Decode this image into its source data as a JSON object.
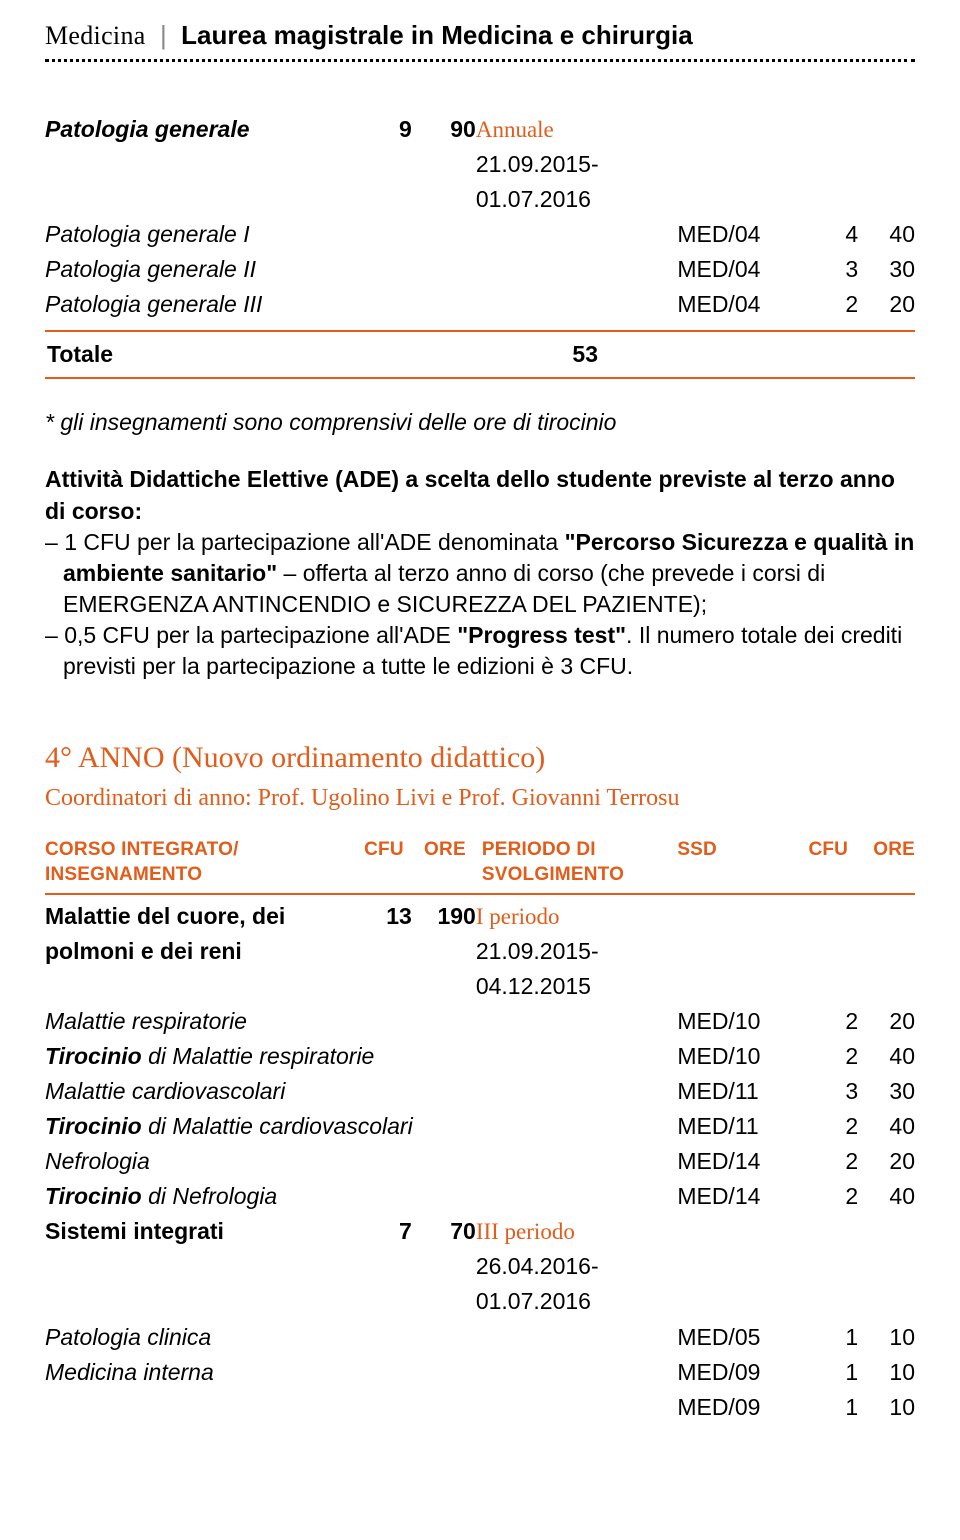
{
  "header": {
    "brand": "Medicina",
    "degree": "Laurea magistrale in Medicina e chirurgia",
    "brand_font": "Georgia serif",
    "brand_fontsize": 26,
    "degree_fontsize": 26,
    "degree_weight": 700,
    "dotted_border_color": "#000000"
  },
  "accent_color": "#e35c19",
  "text_color": "#000000",
  "background_color": "#ffffff",
  "body_fontsize": 23,
  "topTable": {
    "rows": [
      {
        "name": "Patologia generale",
        "name_style": "bold-italic",
        "cfu1": "9",
        "ore1": "90",
        "period": "Annuale",
        "period_orange": true,
        "period2": "21.09.2015-",
        "period3": "01.07.2016"
      },
      {
        "name": "Patologia generale I",
        "name_style": "italic",
        "ssd": "MED/04",
        "cfu2": "4",
        "ore2": "40"
      },
      {
        "name": "Patologia generale II",
        "name_style": "italic",
        "ssd": "MED/04",
        "cfu2": "3",
        "ore2": "30"
      },
      {
        "name": "Patologia generale III",
        "name_style": "italic",
        "ssd": "MED/04",
        "cfu2": "2",
        "ore2": "20"
      }
    ]
  },
  "totale": {
    "label": "Totale",
    "value": "53"
  },
  "note": "* gli insegnamenti sono comprensivi delle ore di tirocinio",
  "ade": {
    "title": "Attività Didattiche Elettive (ADE) a scelta dello studente previste al terzo anno di corso:",
    "item1_pre": "1 CFU per la partecipazione all'ADE denominata ",
    "item1_bold": "\"Percorso Sicurezza e qualità in ambiente sanitario\"",
    "item1_post": " – offerta al terzo anno di corso (che prevede i corsi di EMERGENZA ANTINCENDIO e SICUREZZA DEL PAZIENTE);",
    "item2_pre": "0,5 CFU per la partecipazione all'ADE ",
    "item2_bold": "\"Progress test\"",
    "item2_post": ". Il numero totale dei crediti previsti per la partecipazione a tutte le edizioni è 3 CFU."
  },
  "year": {
    "title": "4° ANNO (Nuovo ordinamento didattico)",
    "subtitle": "Coordinatori di anno: Prof. Ugolino Livi e Prof. Giovanni Terrosu",
    "title_fontsize": 30,
    "subtitle_fontsize": 24,
    "header": {
      "c1a": "CORSO INTEGRATO/",
      "c1b": "INSEGNAMENTO",
      "c2": "CFU",
      "c3": "ORE",
      "c4a": "PERIODO DI",
      "c4b": "SVOLGIMENTO",
      "c5": "SSD",
      "c6": "CFU",
      "c7": "ORE",
      "color": "#e35c19",
      "border_color": "#e35c19",
      "fontsize": 19
    },
    "rows": [
      {
        "name": "Malattie del cuore, dei",
        "name_style": "bold",
        "cfu1": "13",
        "ore1": "190",
        "period": "I periodo",
        "period_orange": true
      },
      {
        "name": "polmoni e dei reni",
        "name_style": "bold",
        "period": "21.09.2015-"
      },
      {
        "period": "04.12.2015"
      },
      {
        "name": "Malattie respiratorie",
        "name_style": "italic",
        "wide": true,
        "ssd": "MED/10",
        "cfu2": "2",
        "ore2": "20"
      },
      {
        "name_pre_bi": "Tirocinio",
        "name_post_i": " di Malattie respiratorie",
        "wide": true,
        "ssd": "MED/10",
        "cfu2": "2",
        "ore2": "40"
      },
      {
        "name": "Malattie cardiovascolari",
        "name_style": "italic",
        "wide": true,
        "ssd": "MED/11",
        "cfu2": "3",
        "ore2": "30"
      },
      {
        "name_pre_bi": "Tirocinio",
        "name_post_i": " di Malattie cardiovascolari",
        "wide": true,
        "ssd": "MED/11",
        "cfu2": "2",
        "ore2": "40"
      },
      {
        "name": "Nefrologia",
        "name_style": "italic",
        "wide": true,
        "ssd": "MED/14",
        "cfu2": "2",
        "ore2": "20"
      },
      {
        "name_pre_bi": "Tirocinio",
        "name_post_i": " di Nefrologia",
        "wide": true,
        "ssd": "MED/14",
        "cfu2": "2",
        "ore2": "40"
      },
      {
        "name": "Sistemi integrati",
        "name_style": "bold",
        "cfu1": "7",
        "ore1": "70",
        "period": "III periodo",
        "period_orange": true
      },
      {
        "period": "26.04.2016-"
      },
      {
        "period": "01.07.2016"
      },
      {
        "name": "Patologia clinica",
        "name_style": "italic",
        "wide": true,
        "ssd": "MED/05",
        "cfu2": "1",
        "ore2": "10"
      },
      {
        "name": "Medicina interna",
        "name_style": "italic",
        "wide": true,
        "ssd": "MED/09",
        "cfu2": "1",
        "ore2": "10"
      },
      {
        "wide": true,
        "ssd": "MED/09",
        "cfu2": "1",
        "ore2": "10"
      }
    ]
  }
}
